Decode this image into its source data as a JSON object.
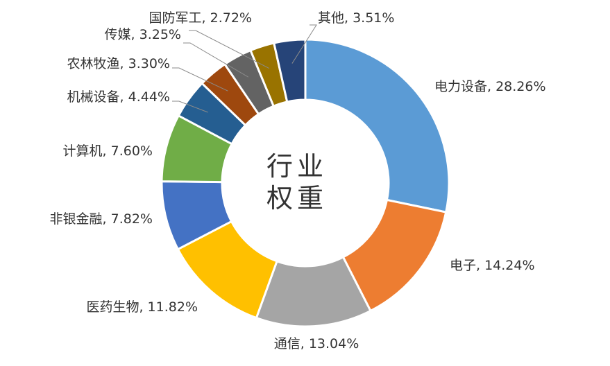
{
  "chart_data": {
    "type": "pie",
    "donut": true,
    "center_label": [
      "行业",
      "权重"
    ],
    "unit": "%",
    "slices": [
      {
        "name": "电力设备",
        "value": 28.26,
        "label": "电力设备, 28.26%",
        "color": "#5B9BD5"
      },
      {
        "name": "电子",
        "value": 14.24,
        "label": "电子, 14.24%",
        "color": "#ED7D31"
      },
      {
        "name": "通信",
        "value": 13.04,
        "label": "通信, 13.04%",
        "color": "#A5A5A5"
      },
      {
        "name": "医药生物",
        "value": 11.82,
        "label": "医药生物, 11.82%",
        "color": "#FFC000"
      },
      {
        "name": "非银金融",
        "value": 7.82,
        "label": "非银金融, 7.82%",
        "color": "#4472C4"
      },
      {
        "name": "计算机",
        "value": 7.6,
        "label": "计算机, 7.60%",
        "color": "#70AD47"
      },
      {
        "name": "机械设备",
        "value": 4.44,
        "label": "机械设备, 4.44%",
        "color": "#255E91"
      },
      {
        "name": "农林牧渔",
        "value": 3.3,
        "label": "农林牧渔, 3.30%",
        "color": "#9E480E"
      },
      {
        "name": "传媒",
        "value": 3.25,
        "label": "传媒, 3.25%",
        "color": "#636363"
      },
      {
        "name": "国防军工",
        "value": 2.72,
        "label": "国防军工, 2.72%",
        "color": "#997300"
      },
      {
        "name": "其他",
        "value": 3.51,
        "label": "其他, 3.51%",
        "color": "#264478"
      }
    ]
  }
}
